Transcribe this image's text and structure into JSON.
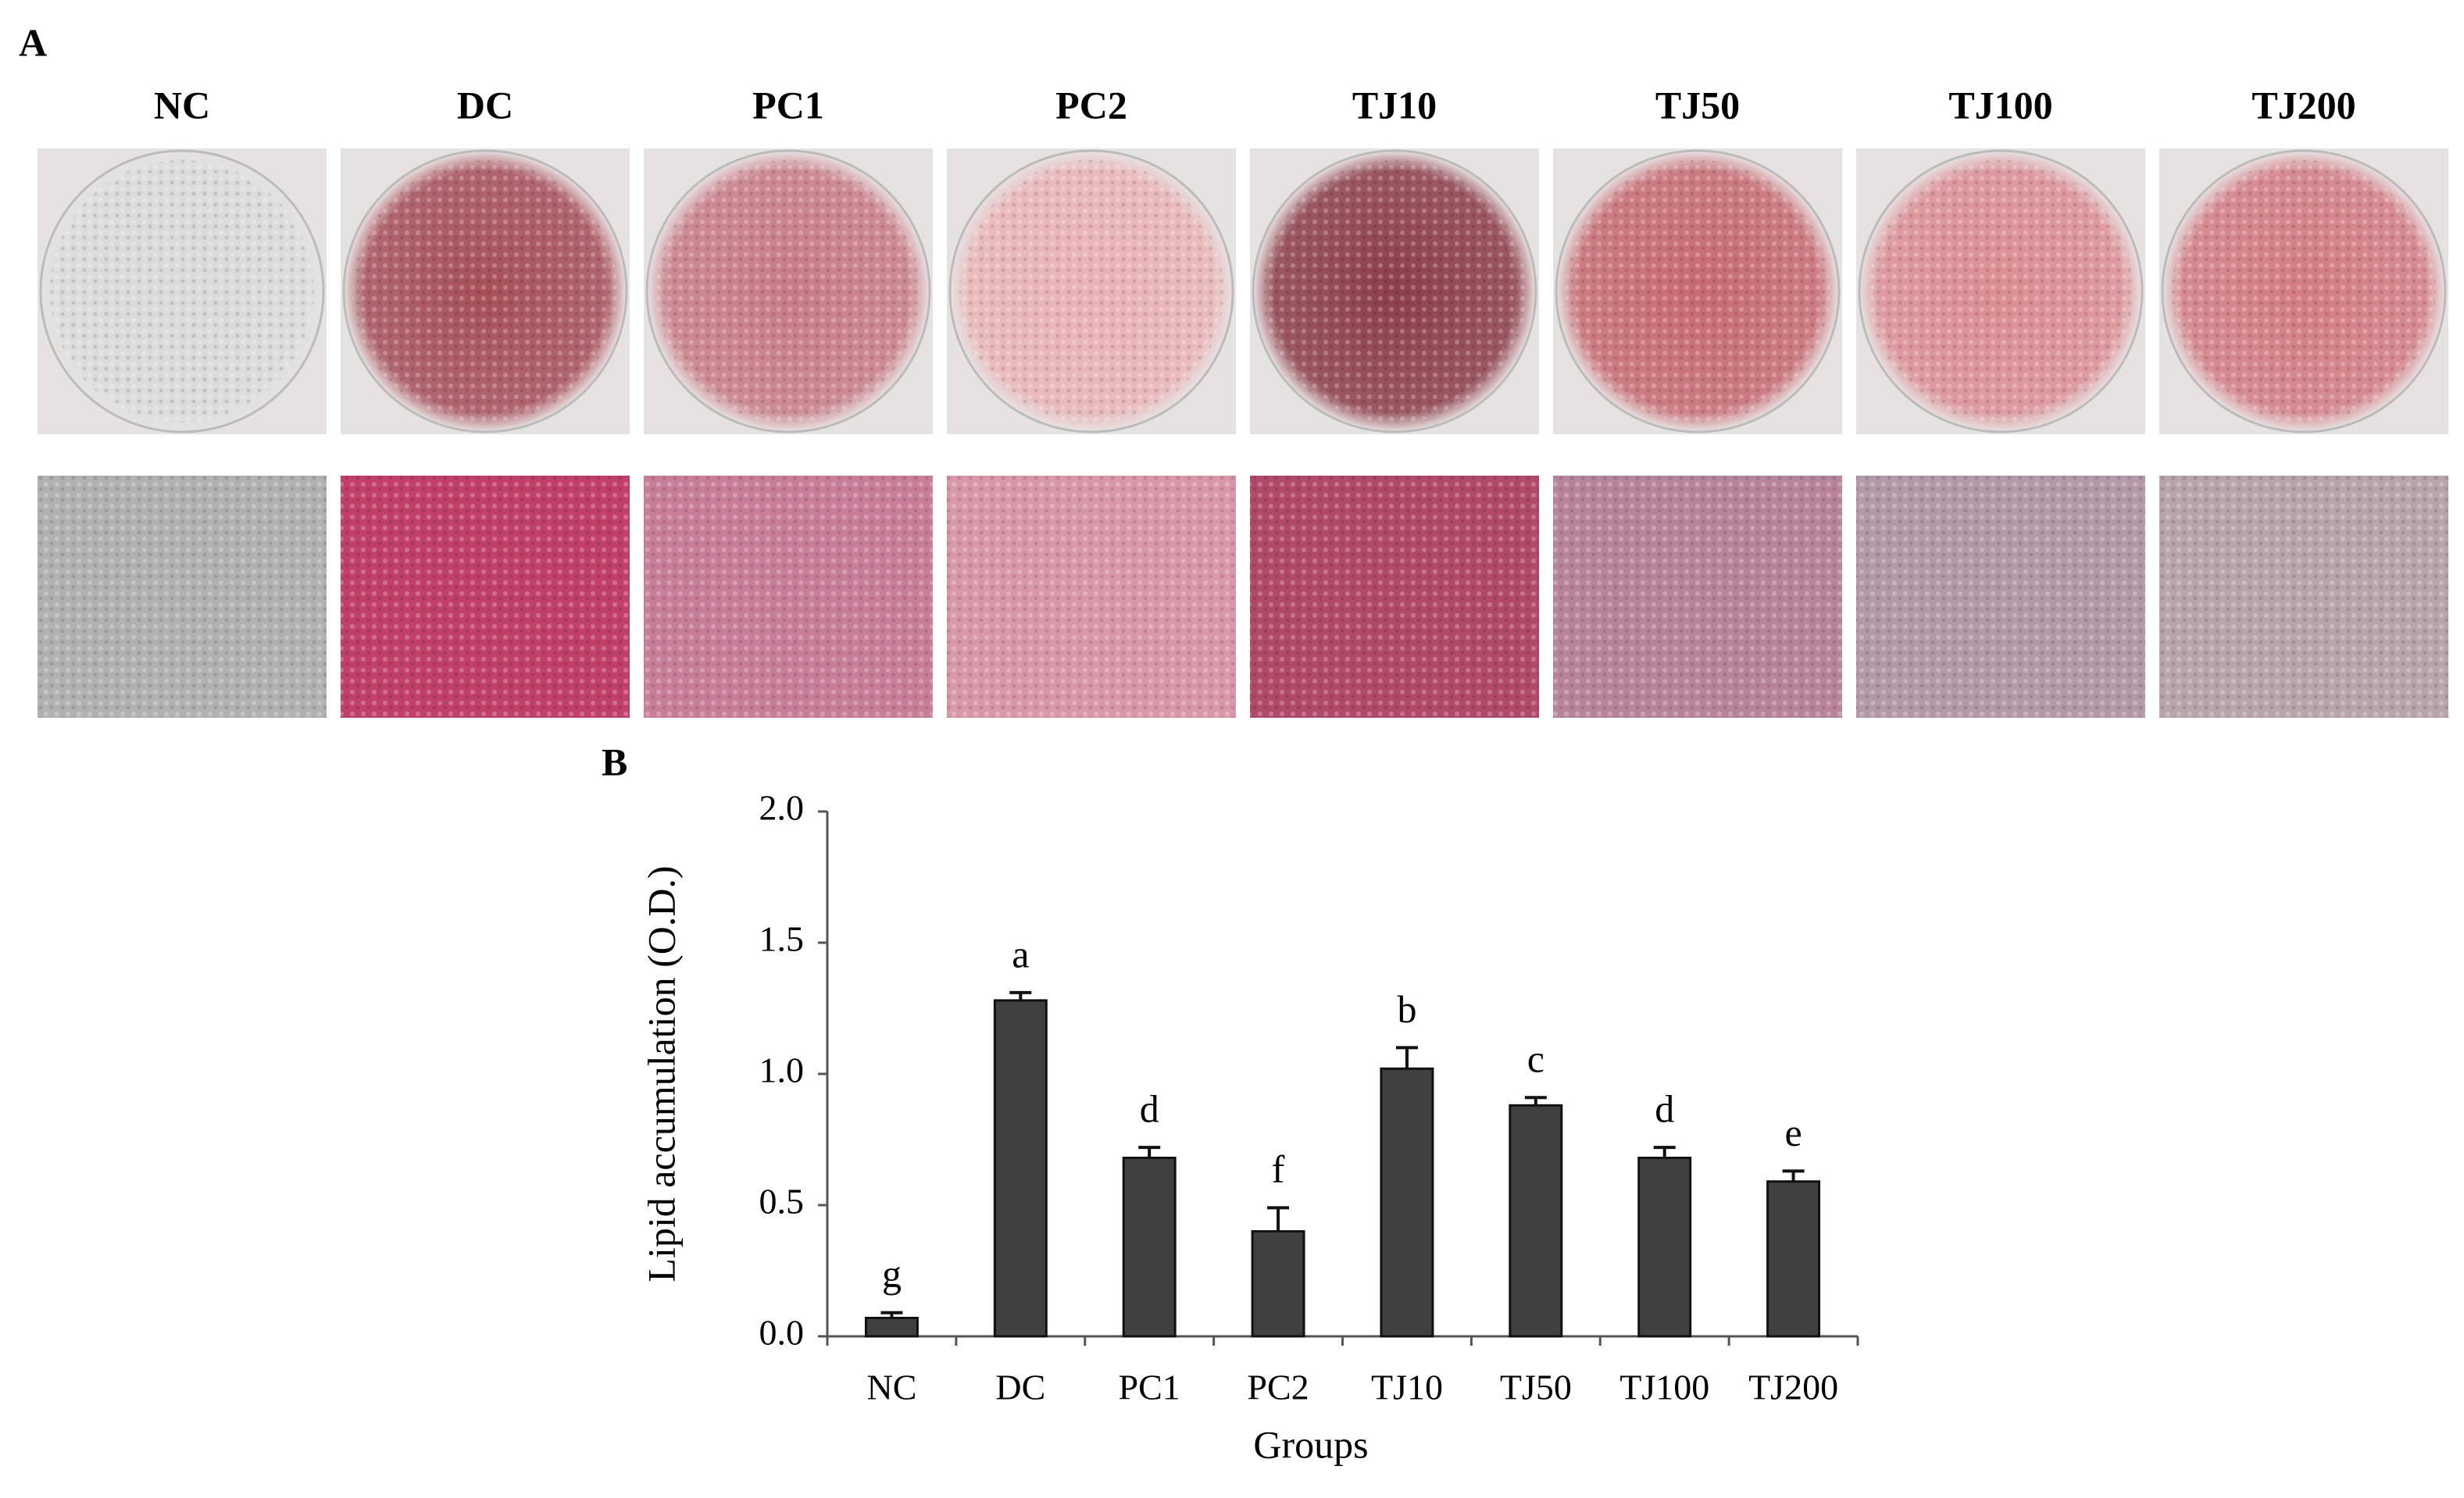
{
  "panel_a": {
    "label": "A",
    "columns": [
      "NC",
      "DC",
      "PC1",
      "PC2",
      "TJ10",
      "TJ50",
      "TJ100",
      "TJ200"
    ]
  },
  "panel_b": {
    "label": "B"
  },
  "chart_data": {
    "type": "bar",
    "x_label": "Groups",
    "y_label": "Lipid accumulation (O.D.)",
    "categories": [
      "NC",
      "DC",
      "PC1",
      "PC2",
      "TJ10",
      "TJ50",
      "TJ100",
      "TJ200"
    ],
    "values": [
      0.07,
      1.28,
      0.68,
      0.4,
      1.02,
      0.88,
      0.68,
      0.59
    ],
    "errors": [
      0.02,
      0.03,
      0.04,
      0.09,
      0.08,
      0.03,
      0.04,
      0.04
    ],
    "significance": [
      "g",
      "a",
      "d",
      "f",
      "b",
      "c",
      "d",
      "e"
    ],
    "color": "#404040",
    "ylim": [
      0,
      2
    ],
    "yticks": [
      {
        "value": 0,
        "label": "0.0"
      },
      0.5,
      {
        "value": 1,
        "label": "1.0"
      },
      1.5,
      {
        "value": 2,
        "label": "2.0"
      }
    ]
  }
}
